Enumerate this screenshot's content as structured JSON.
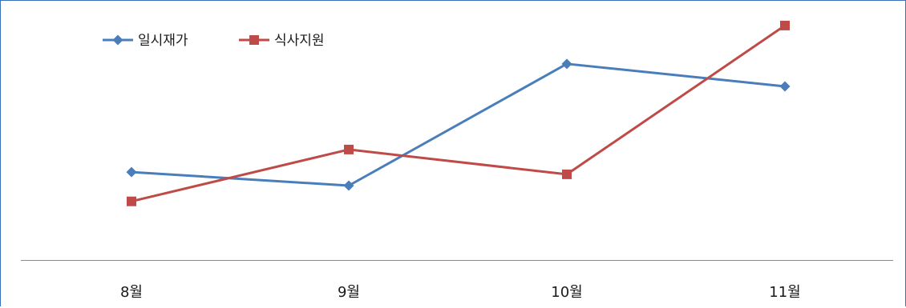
{
  "chart_data": {
    "type": "line",
    "title": "",
    "xlabel": "",
    "ylabel": "",
    "categories": [
      "8월",
      "9월",
      "10월",
      "11월"
    ],
    "grid": false,
    "legend": "top-left",
    "ylim": [
      0,
      100
    ],
    "series": [
      {
        "name": "일시재가",
        "color": "#4a7ebb",
        "marker": "diamond",
        "values": [
          39,
          33,
          87,
          77
        ]
      },
      {
        "name": "식사지원",
        "color": "#be4b48",
        "marker": "square",
        "values": [
          26,
          49,
          38,
          104
        ]
      }
    ]
  }
}
